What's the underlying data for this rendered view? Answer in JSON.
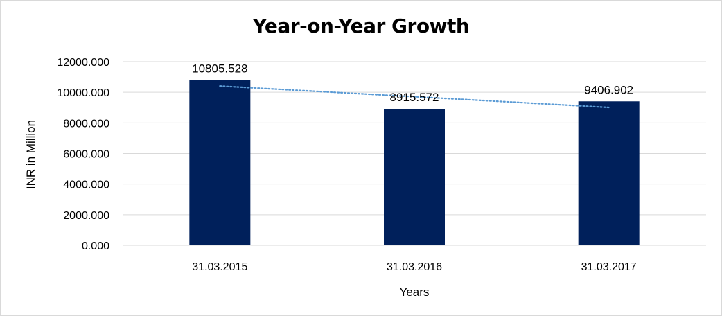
{
  "chart_data": {
    "type": "bar",
    "title": "Year-on-Year Growth",
    "xlabel": "Years",
    "ylabel": "INR in Million",
    "categories": [
      "31.03.2015",
      "31.03.2016",
      "31.03.2017"
    ],
    "values": [
      10805.528,
      8915.572,
      9406.902
    ],
    "data_labels": [
      "10805.528",
      "8915.572",
      "9406.902"
    ],
    "ylim": [
      0,
      12000
    ],
    "yticks": [
      0,
      2000,
      4000,
      6000,
      8000,
      10000,
      12000
    ],
    "ytick_labels": [
      "0.000",
      "2000.000",
      "4000.000",
      "6000.000",
      "8000.000",
      "10000.000",
      "12000.000"
    ],
    "grid": true,
    "legend": false,
    "trendline": {
      "type": "linear",
      "style": "dotted"
    },
    "colors": {
      "bar": "#00205b",
      "trendline": "#5b9bd5",
      "grid": "#d9d9d9"
    }
  }
}
